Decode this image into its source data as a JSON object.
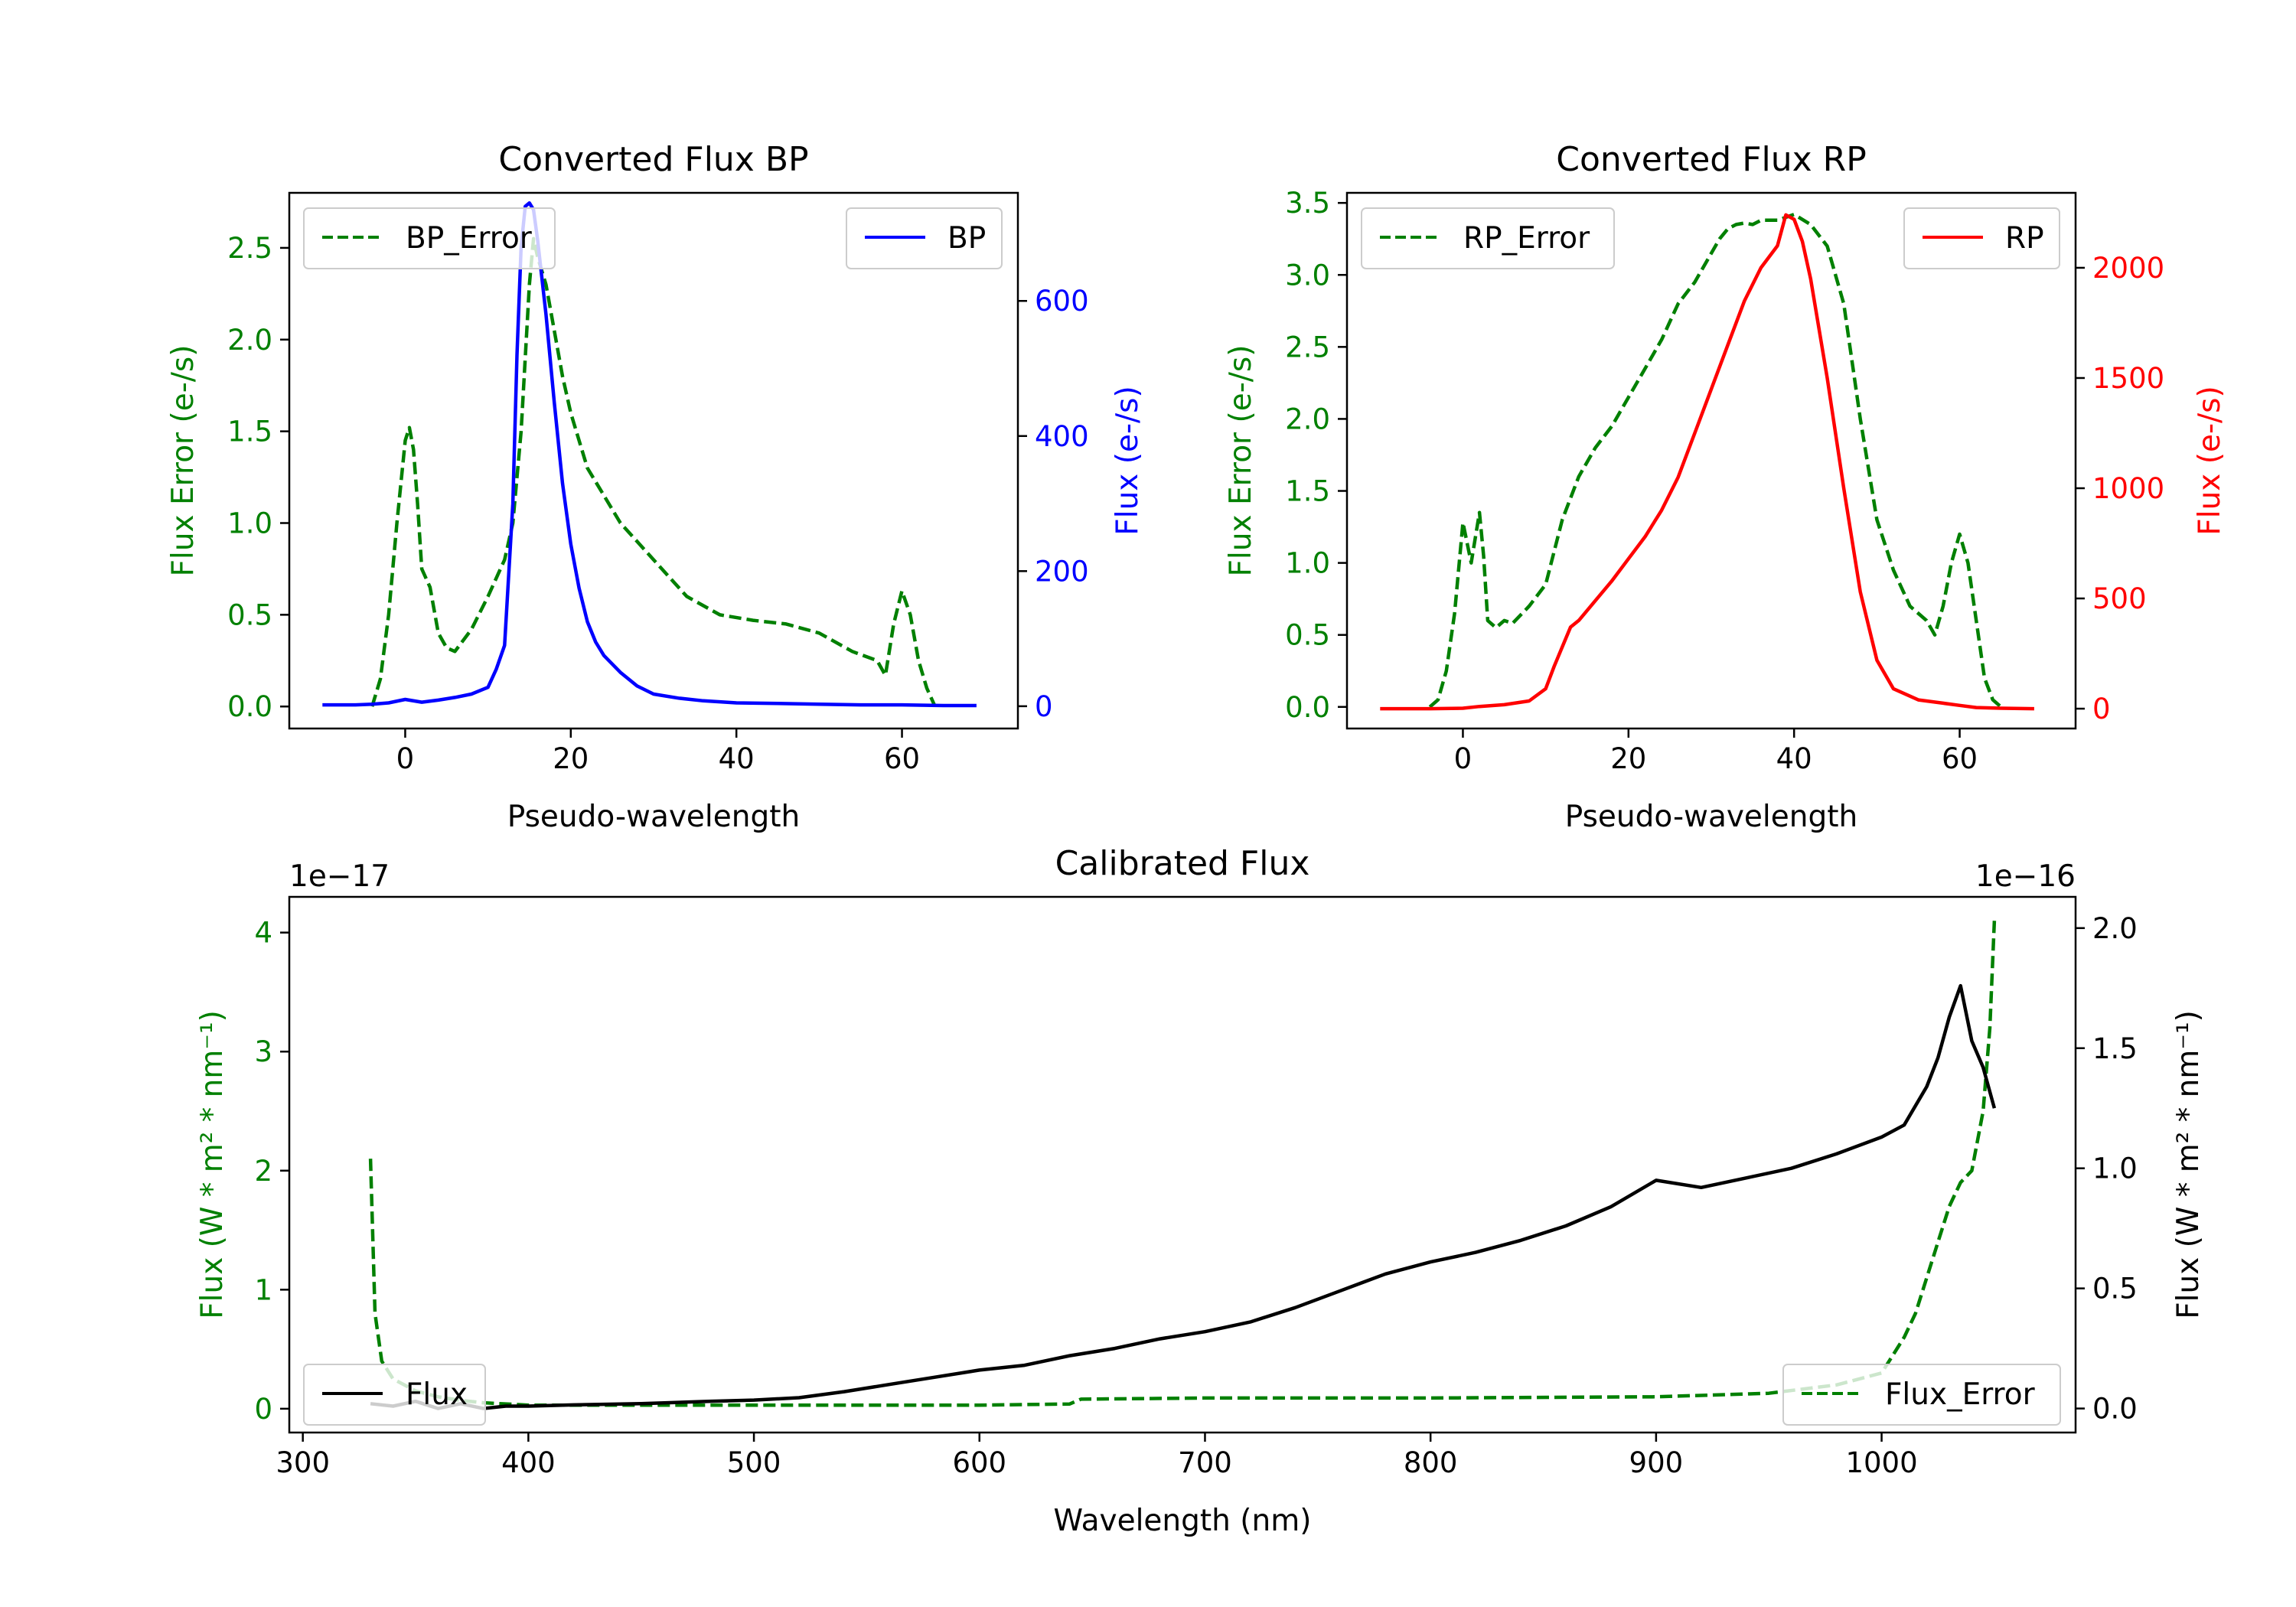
{
  "colors": {
    "bp": "#0000ff",
    "rp": "#ff0000",
    "error": "#008000",
    "flux": "#000000",
    "axis": "#000000"
  },
  "chart_data": [
    {
      "id": "bp",
      "type": "line",
      "title": "Converted Flux BP",
      "xlabel": "Pseudo-wavelength",
      "ylabel_left": "Flux Error (e-/s)",
      "ylabel_right": "Flux (e-/s)",
      "xlim": [
        -14,
        74
      ],
      "ylim_left": [
        -0.12,
        2.8
      ],
      "ylim_right": [
        -33,
        760
      ],
      "xticks": [
        0,
        20,
        40,
        60
      ],
      "yticks_left": [
        0.0,
        0.5,
        1.0,
        1.5,
        2.0,
        2.5
      ],
      "ytick_labels_left": [
        "0.0",
        "0.5",
        "1.0",
        "1.5",
        "2.0",
        "2.5"
      ],
      "yticks_right": [
        0,
        200,
        400,
        600
      ],
      "ytick_labels_right": [
        "0",
        "200",
        "400",
        "600"
      ],
      "legend_left": {
        "label": "BP_Error",
        "position": "top-left"
      },
      "legend_right": {
        "label": "BP",
        "position": "top-right"
      },
      "series": [
        {
          "name": "BP",
          "axis": "right",
          "style": "solid",
          "x": [
            -10,
            -6,
            -4,
            -2,
            0,
            2,
            4,
            6,
            8,
            10,
            11,
            12,
            13,
            13.5,
            14,
            14.5,
            15,
            15.5,
            16,
            17,
            18,
            19,
            20,
            21,
            22,
            23,
            24,
            26,
            28,
            30,
            33,
            36,
            40,
            45,
            50,
            55,
            60,
            65,
            69
          ],
          "y": [
            2,
            2,
            3,
            5,
            10,
            6,
            9,
            13,
            18,
            28,
            55,
            90,
            300,
            520,
            680,
            740,
            745,
            735,
            690,
            580,
            450,
            330,
            240,
            175,
            125,
            95,
            75,
            50,
            30,
            18,
            12,
            8,
            5,
            4,
            3,
            2,
            2,
            1,
            1
          ]
        },
        {
          "name": "BP_Error",
          "axis": "left",
          "style": "dashed",
          "x": [
            -4,
            -3,
            -2,
            -1,
            0,
            0.5,
            1,
            1.5,
            2,
            3,
            4,
            5,
            6,
            8,
            10,
            12,
            13,
            14,
            15,
            15.5,
            16,
            17,
            18,
            19,
            20,
            22,
            24,
            26,
            28,
            30,
            34,
            38,
            42,
            46,
            50,
            54,
            57,
            58,
            59,
            60,
            61,
            62,
            63,
            64
          ],
          "y": [
            0.0,
            0.15,
            0.5,
            1.0,
            1.45,
            1.52,
            1.4,
            1.1,
            0.75,
            0.65,
            0.4,
            0.32,
            0.3,
            0.42,
            0.6,
            0.8,
            1.0,
            1.5,
            2.3,
            2.55,
            2.45,
            2.3,
            2.05,
            1.8,
            1.6,
            1.3,
            1.15,
            1.0,
            0.9,
            0.8,
            0.6,
            0.5,
            0.47,
            0.45,
            0.4,
            0.3,
            0.25,
            0.17,
            0.45,
            0.63,
            0.5,
            0.25,
            0.1,
            0.0
          ]
        }
      ]
    },
    {
      "id": "rp",
      "type": "line",
      "title": "Converted Flux RP",
      "xlabel": "Pseudo-wavelength",
      "ylabel_left": "Flux Error (e-/s)",
      "ylabel_right": "Flux (e-/s)",
      "xlim": [
        -14,
        74
      ],
      "ylim_left": [
        -0.15,
        3.57
      ],
      "ylim_right": [
        -90,
        2340
      ],
      "xticks": [
        0,
        20,
        40,
        60
      ],
      "yticks_left": [
        0.0,
        0.5,
        1.0,
        1.5,
        2.0,
        2.5,
        3.0,
        3.5
      ],
      "ytick_labels_left": [
        "0.0",
        "0.5",
        "1.0",
        "1.5",
        "2.0",
        "2.5",
        "3.0",
        "3.5"
      ],
      "yticks_right": [
        0,
        500,
        1000,
        1500,
        2000
      ],
      "ytick_labels_right": [
        "0",
        "500",
        "1000",
        "1500",
        "2000"
      ],
      "legend_left": {
        "label": "RP_Error",
        "position": "top-left"
      },
      "legend_right": {
        "label": "RP",
        "position": "top-right"
      },
      "series": [
        {
          "name": "RP",
          "axis": "right",
          "style": "solid",
          "x": [
            -10,
            -4,
            0,
            2,
            5,
            8,
            10,
            11,
            12,
            13,
            14,
            16,
            18,
            20,
            22,
            24,
            26,
            28,
            30,
            32,
            34,
            36,
            38,
            39,
            40,
            41,
            42,
            44,
            46,
            48,
            50,
            52,
            55,
            58,
            60,
            62,
            65,
            69
          ],
          "y": [
            0,
            0,
            2,
            10,
            18,
            35,
            90,
            190,
            280,
            370,
            400,
            490,
            580,
            680,
            780,
            900,
            1050,
            1250,
            1450,
            1650,
            1850,
            2000,
            2100,
            2240,
            2220,
            2120,
            1950,
            1500,
            1000,
            530,
            220,
            90,
            40,
            25,
            15,
            5,
            2,
            0
          ]
        },
        {
          "name": "RP_Error",
          "axis": "left",
          "style": "dashed",
          "x": [
            -4,
            -3,
            -2,
            -1,
            0,
            1,
            2,
            2.5,
            3,
            4,
            5,
            6,
            8,
            10,
            12,
            14,
            16,
            18,
            20,
            22,
            24,
            26,
            28,
            30,
            31,
            32,
            33,
            34,
            35,
            36,
            38,
            40,
            42,
            44,
            46,
            48,
            50,
            52,
            54,
            56,
            57,
            58,
            59,
            60,
            61,
            62,
            63,
            64,
            65
          ],
          "y": [
            0.0,
            0.05,
            0.25,
            0.65,
            1.28,
            1.0,
            1.35,
            1.05,
            0.6,
            0.55,
            0.6,
            0.58,
            0.7,
            0.85,
            1.3,
            1.6,
            1.8,
            1.95,
            2.15,
            2.35,
            2.55,
            2.8,
            2.95,
            3.15,
            3.25,
            3.32,
            3.35,
            3.36,
            3.35,
            3.38,
            3.38,
            3.42,
            3.35,
            3.2,
            2.8,
            2.0,
            1.3,
            0.95,
            0.7,
            0.6,
            0.5,
            0.7,
            1.0,
            1.2,
            1.0,
            0.6,
            0.2,
            0.05,
            0.0
          ]
        }
      ]
    },
    {
      "id": "cal",
      "type": "line",
      "title": "Calibrated Flux",
      "xlabel": "Wavelength (nm)",
      "ylabel_left": "Flux (W * m² * nm⁻¹)",
      "ylabel_right": "Flux (W * m² * nm⁻¹)",
      "offset_left": "1e−17",
      "offset_right": "1e−16",
      "xlim": [
        294,
        1086
      ],
      "ylim_left": [
        -0.2,
        4.3
      ],
      "ylim_right": [
        -0.1,
        2.13
      ],
      "xticks": [
        300,
        400,
        500,
        600,
        700,
        800,
        900,
        1000
      ],
      "yticks_left": [
        0,
        1,
        2,
        3,
        4
      ],
      "ytick_labels_left": [
        "0",
        "1",
        "2",
        "3",
        "4"
      ],
      "yticks_right": [
        0.0,
        0.5,
        1.0,
        1.5,
        2.0
      ],
      "ytick_labels_right": [
        "0.0",
        "0.5",
        "1.0",
        "1.5",
        "2.0"
      ],
      "legend_left": {
        "label": "Flux",
        "position": "lower-left"
      },
      "legend_right": {
        "label": "Flux_Error",
        "position": "lower-right"
      },
      "series": [
        {
          "name": "Flux",
          "axis": "right",
          "style": "solid",
          "x": [
            330,
            340,
            350,
            360,
            370,
            380,
            390,
            400,
            420,
            450,
            480,
            500,
            520,
            540,
            560,
            580,
            600,
            620,
            640,
            660,
            680,
            700,
            720,
            740,
            760,
            780,
            800,
            820,
            840,
            860,
            880,
            900,
            920,
            940,
            960,
            980,
            1000,
            1010,
            1020,
            1025,
            1030,
            1035,
            1040,
            1045,
            1050
          ],
          "y": [
            0.02,
            0.01,
            0.03,
            0.0,
            0.02,
            0.0,
            0.01,
            0.01,
            0.015,
            0.02,
            0.03,
            0.035,
            0.045,
            0.07,
            0.1,
            0.13,
            0.16,
            0.18,
            0.22,
            0.25,
            0.29,
            0.32,
            0.36,
            0.42,
            0.49,
            0.56,
            0.61,
            0.65,
            0.7,
            0.76,
            0.84,
            0.95,
            0.92,
            0.96,
            1.0,
            1.06,
            1.13,
            1.18,
            1.34,
            1.46,
            1.63,
            1.76,
            1.53,
            1.42,
            1.25
          ]
        },
        {
          "name": "Flux_Error",
          "axis": "left",
          "style": "dashed",
          "x": [
            330,
            332,
            335,
            340,
            350,
            360,
            370,
            380,
            400,
            450,
            500,
            550,
            600,
            640,
            645,
            700,
            800,
            900,
            950,
            980,
            1000,
            1005,
            1010,
            1015,
            1020,
            1025,
            1030,
            1035,
            1040,
            1045,
            1048,
            1050
          ],
          "y": [
            2.1,
            0.8,
            0.4,
            0.25,
            0.15,
            0.1,
            0.07,
            0.05,
            0.03,
            0.03,
            0.03,
            0.03,
            0.03,
            0.04,
            0.08,
            0.09,
            0.09,
            0.1,
            0.13,
            0.2,
            0.3,
            0.45,
            0.6,
            0.8,
            1.1,
            1.4,
            1.7,
            1.9,
            2.0,
            2.5,
            3.2,
            4.1
          ]
        }
      ]
    }
  ]
}
